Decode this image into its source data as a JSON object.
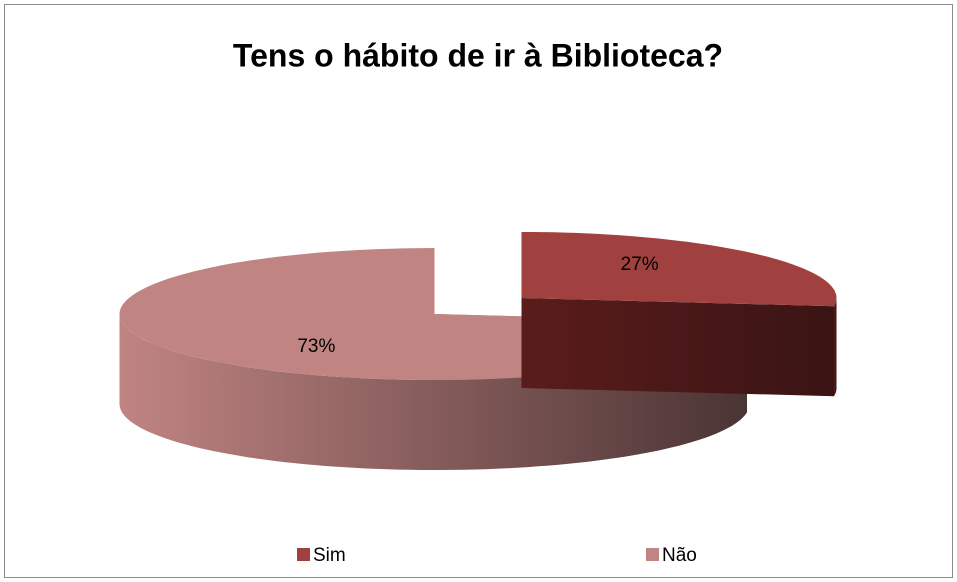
{
  "chart_data": {
    "type": "pie",
    "title": "Tens o hábito de ir à Biblioteca?",
    "categories": [
      "Sim",
      "Não"
    ],
    "values": [
      27,
      73
    ],
    "value_labels": [
      "27%",
      "73%"
    ],
    "colors": [
      "#a0413f",
      "#c08482"
    ],
    "legend": "bottom"
  }
}
